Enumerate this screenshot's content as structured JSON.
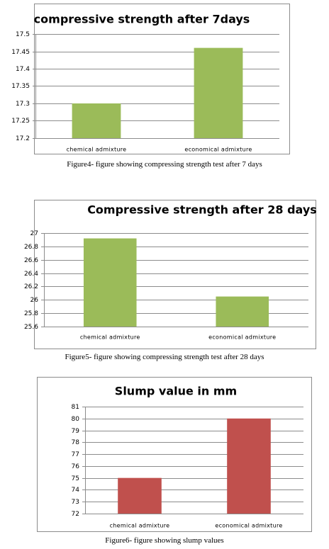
{
  "chart_data": [
    {
      "type": "bar",
      "title": "compressive strength after 7days",
      "categories": [
        "chemical admixture",
        "economical admixture"
      ],
      "values": [
        17.3,
        17.46
      ],
      "ylim": [
        17.2,
        17.5
      ],
      "yticks": [
        "17.5",
        "17.45",
        "17.4",
        "17.35",
        "17.3",
        "17.25",
        "17.2"
      ],
      "grid": true,
      "color": "#9bbb59",
      "caption": "Figure4- figure showing compressing strength test after 7 days"
    },
    {
      "type": "bar",
      "title": "Compressive strength after 28 days",
      "categories": [
        "chemical admixture",
        "economical admixture"
      ],
      "values": [
        26.92,
        26.05
      ],
      "ylim": [
        25.6,
        27
      ],
      "yticks": [
        "27",
        "26.8",
        "26.6",
        "26.4",
        "26.2",
        "26",
        "25.8",
        "25.6"
      ],
      "grid": true,
      "color": "#9bbb59",
      "caption": "Figure5- figure showing compressing strength test after 28 days"
    },
    {
      "type": "bar",
      "title": "Slump value in mm",
      "categories": [
        "chemical admixture",
        "economical admixture"
      ],
      "values": [
        75,
        80
      ],
      "ylim": [
        72,
        81
      ],
      "yticks": [
        "81",
        "80",
        "79",
        "78",
        "77",
        "76",
        "75",
        "74",
        "73",
        "72"
      ],
      "grid": true,
      "color": "#c0504d",
      "caption": "Figure6- figure showing slump values"
    }
  ]
}
